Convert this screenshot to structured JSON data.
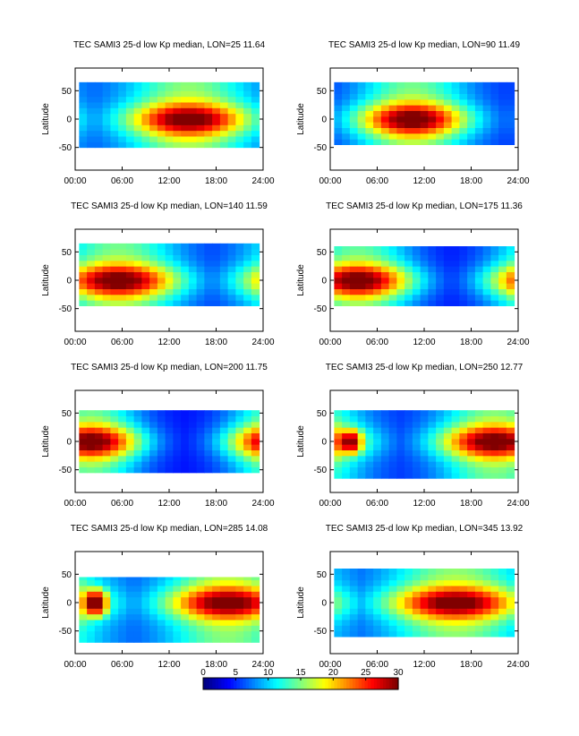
{
  "figure": {
    "colorbar": {
      "ticks": [
        0,
        5,
        10,
        15,
        20,
        25,
        30
      ],
      "labels": [
        "0",
        "5",
        "10",
        "15",
        "20",
        "25",
        "30"
      ],
      "colormap": "jet"
    }
  },
  "chart_data": [
    {
      "type": "heatmap",
      "title": "TEC  SAMI3 25-d low Kp median, LON=25 11.64",
      "xlabel": "",
      "ylabel": "Latitude",
      "x_ticks": [
        "00:00",
        "06:00",
        "12:00",
        "18:00",
        "24:00"
      ],
      "y_ticks": [
        "50",
        "0",
        "-50"
      ],
      "xlim": [
        0,
        24
      ],
      "ylim": [
        -90,
        90
      ],
      "lat_range": [
        -50,
        65
      ],
      "hour_range": [
        0.5,
        23.5
      ],
      "peak_hour": 14.5,
      "peak_width": 5.5,
      "peak_value": 32,
      "base_value": 6,
      "morning_bump": 0,
      "colorbar": {
        "min": 0,
        "max": 30
      }
    },
    {
      "type": "heatmap",
      "title": "TEC  SAMI3 25-d low Kp median, LON=90 11.49",
      "xlabel": "",
      "ylabel": "Latitude",
      "x_ticks": [
        "00:00",
        "06:00",
        "12:00",
        "18:00",
        "24:00"
      ],
      "y_ticks": [
        "50",
        "0",
        "-50"
      ],
      "xlim": [
        0,
        24
      ],
      "ylim": [
        -90,
        90
      ],
      "lat_range": [
        -45,
        65
      ],
      "hour_range": [
        0.5,
        23.5
      ],
      "peak_hour": 10.5,
      "peak_width": 5,
      "peak_value": 32,
      "base_value": 5,
      "morning_bump": 0,
      "colorbar": {
        "min": 0,
        "max": 30
      }
    },
    {
      "type": "heatmap",
      "title": "TEC  SAMI3 25-d low Kp median, LON=140 11.59",
      "xlabel": "",
      "ylabel": "Latitude",
      "x_ticks": [
        "00:00",
        "06:00",
        "12:00",
        "18:00",
        "24:00"
      ],
      "y_ticks": [
        "50",
        "0",
        "-50"
      ],
      "xlim": [
        0,
        24
      ],
      "ylim": [
        -90,
        90
      ],
      "lat_range": [
        -45,
        65
      ],
      "hour_range": [
        0.5,
        23.5
      ],
      "peak_hour": 5.5,
      "peak_width": 5.5,
      "peak_value": 32,
      "base_value": 5,
      "morning_bump": 0,
      "colorbar": {
        "min": 0,
        "max": 30
      }
    },
    {
      "type": "heatmap",
      "title": "TEC  SAMI3 25-d low Kp median, LON=175 11.36",
      "xlabel": "",
      "ylabel": "Latitude",
      "x_ticks": [
        "00:00",
        "06:00",
        "12:00",
        "18:00",
        "24:00"
      ],
      "y_ticks": [
        "50",
        "0",
        "-50"
      ],
      "xlim": [
        0,
        24
      ],
      "ylim": [
        -90,
        90
      ],
      "lat_range": [
        -45,
        60
      ],
      "hour_range": [
        0.5,
        23.5
      ],
      "peak_hour": 3.5,
      "peak_width": 5,
      "peak_value": 32,
      "base_value": 4,
      "morning_bump": 0,
      "colorbar": {
        "min": 0,
        "max": 30
      }
    },
    {
      "type": "heatmap",
      "title": "TEC  SAMI3 25-d low Kp median, LON=200 11.75",
      "xlabel": "",
      "ylabel": "Latitude",
      "x_ticks": [
        "00:00",
        "06:00",
        "12:00",
        "18:00",
        "24:00"
      ],
      "y_ticks": [
        "50",
        "0",
        "-50"
      ],
      "xlim": [
        0,
        24
      ],
      "ylim": [
        -90,
        90
      ],
      "lat_range": [
        -55,
        55
      ],
      "hour_range": [
        0.5,
        23.5
      ],
      "peak_hour": 2,
      "peak_width": 4.5,
      "peak_value": 32,
      "base_value": 4,
      "morning_bump": 0,
      "colorbar": {
        "min": 0,
        "max": 30
      }
    },
    {
      "type": "heatmap",
      "title": "TEC  SAMI3 25-d low Kp median, LON=250 12.77",
      "xlabel": "",
      "ylabel": "Latitude",
      "x_ticks": [
        "00:00",
        "06:00",
        "12:00",
        "18:00",
        "24:00"
      ],
      "y_ticks": [
        "50",
        "0",
        "-50"
      ],
      "xlim": [
        0,
        24
      ],
      "ylim": [
        -90,
        90
      ],
      "lat_range": [
        -65,
        55
      ],
      "hour_range": [
        0.5,
        23.5
      ],
      "peak_hour": 21,
      "peak_width": 5,
      "peak_value": 32,
      "base_value": 5,
      "morning_bump": 1,
      "colorbar": {
        "min": 0,
        "max": 30
      }
    },
    {
      "type": "heatmap",
      "title": "TEC  SAMI3 25-d low Kp median, LON=285 14.08",
      "xlabel": "",
      "ylabel": "Latitude",
      "x_ticks": [
        "00:00",
        "06:00",
        "12:00",
        "18:00",
        "24:00"
      ],
      "y_ticks": [
        "50",
        "0",
        "-50"
      ],
      "xlim": [
        0,
        24
      ],
      "ylim": [
        -90,
        90
      ],
      "lat_range": [
        -70,
        45
      ],
      "hour_range": [
        0.5,
        23.5
      ],
      "peak_hour": 19.5,
      "peak_width": 5.5,
      "peak_value": 32,
      "base_value": 6,
      "morning_bump": 1,
      "colorbar": {
        "min": 0,
        "max": 30
      }
    },
    {
      "type": "heatmap",
      "title": "TEC  SAMI3 25-d low Kp median, LON=345 13.92",
      "xlabel": "",
      "ylabel": "Latitude",
      "x_ticks": [
        "00:00",
        "06:00",
        "12:00",
        "18:00",
        "24:00"
      ],
      "y_ticks": [
        "50",
        "0",
        "-50"
      ],
      "xlim": [
        0,
        24
      ],
      "ylim": [
        -90,
        90
      ],
      "lat_range": [
        -60,
        60
      ],
      "hour_range": [
        0.5,
        23.5
      ],
      "peak_hour": 16,
      "peak_width": 6,
      "peak_value": 32,
      "base_value": 6,
      "morning_bump": 0,
      "colorbar": {
        "min": 0,
        "max": 30
      }
    }
  ]
}
